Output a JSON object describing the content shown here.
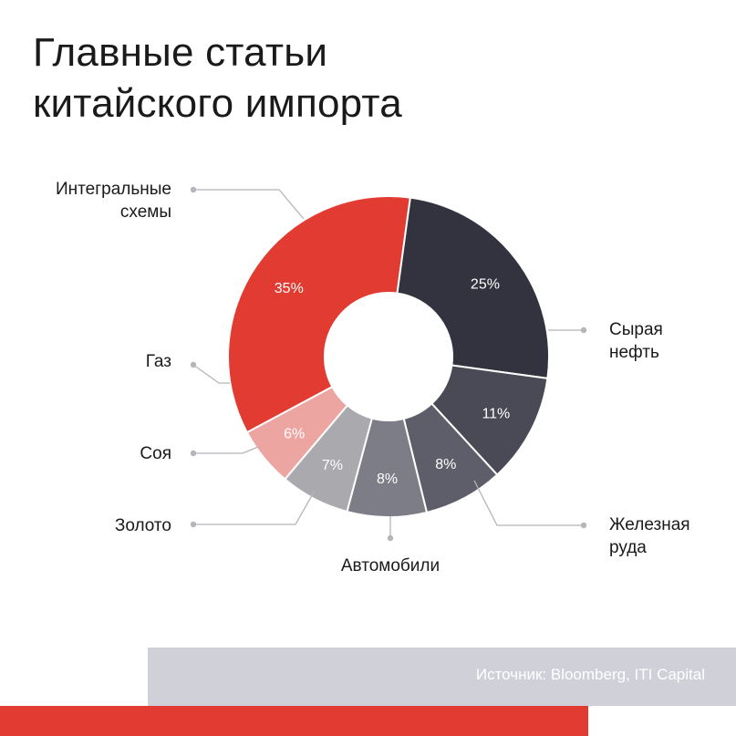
{
  "title_lines": [
    "Главные статьи",
    "китайского импорта"
  ],
  "source": "Источник: Bloomberg, ITI Capital",
  "colors": {
    "red": "#e23b32",
    "dark": "#33333f",
    "stripe": "#e23b32",
    "footer_bg": "#cfd0d8"
  },
  "chart_data": {
    "type": "pie",
    "title": "Главные статьи китайского импорта",
    "donut": true,
    "categories": [
      "Интегральные схемы",
      "Сырая нефть",
      "Железная руда",
      "Автомобили",
      "Золото",
      "Соя",
      "Газ"
    ],
    "values": [
      35,
      25,
      11,
      8,
      8,
      7,
      6
    ],
    "value_labels": [
      "35%",
      "25%",
      "11%",
      "8%",
      "8%",
      "7%",
      "6%"
    ],
    "label_lines": [
      [
        "Интегральные",
        "схемы"
      ],
      [
        "Сырая",
        "нефть"
      ],
      [
        "Железная",
        "руда"
      ],
      [
        "Автомобили"
      ],
      [
        "Золото"
      ],
      [
        "Соя"
      ],
      [
        "Газ"
      ]
    ],
    "slice_colors": [
      "#e23b32",
      "#33333f",
      "#4a4a56",
      "#5e5e6a",
      "#7d7d87",
      "#aaaaae",
      "#eda5a2"
    ],
    "unit": "%"
  }
}
